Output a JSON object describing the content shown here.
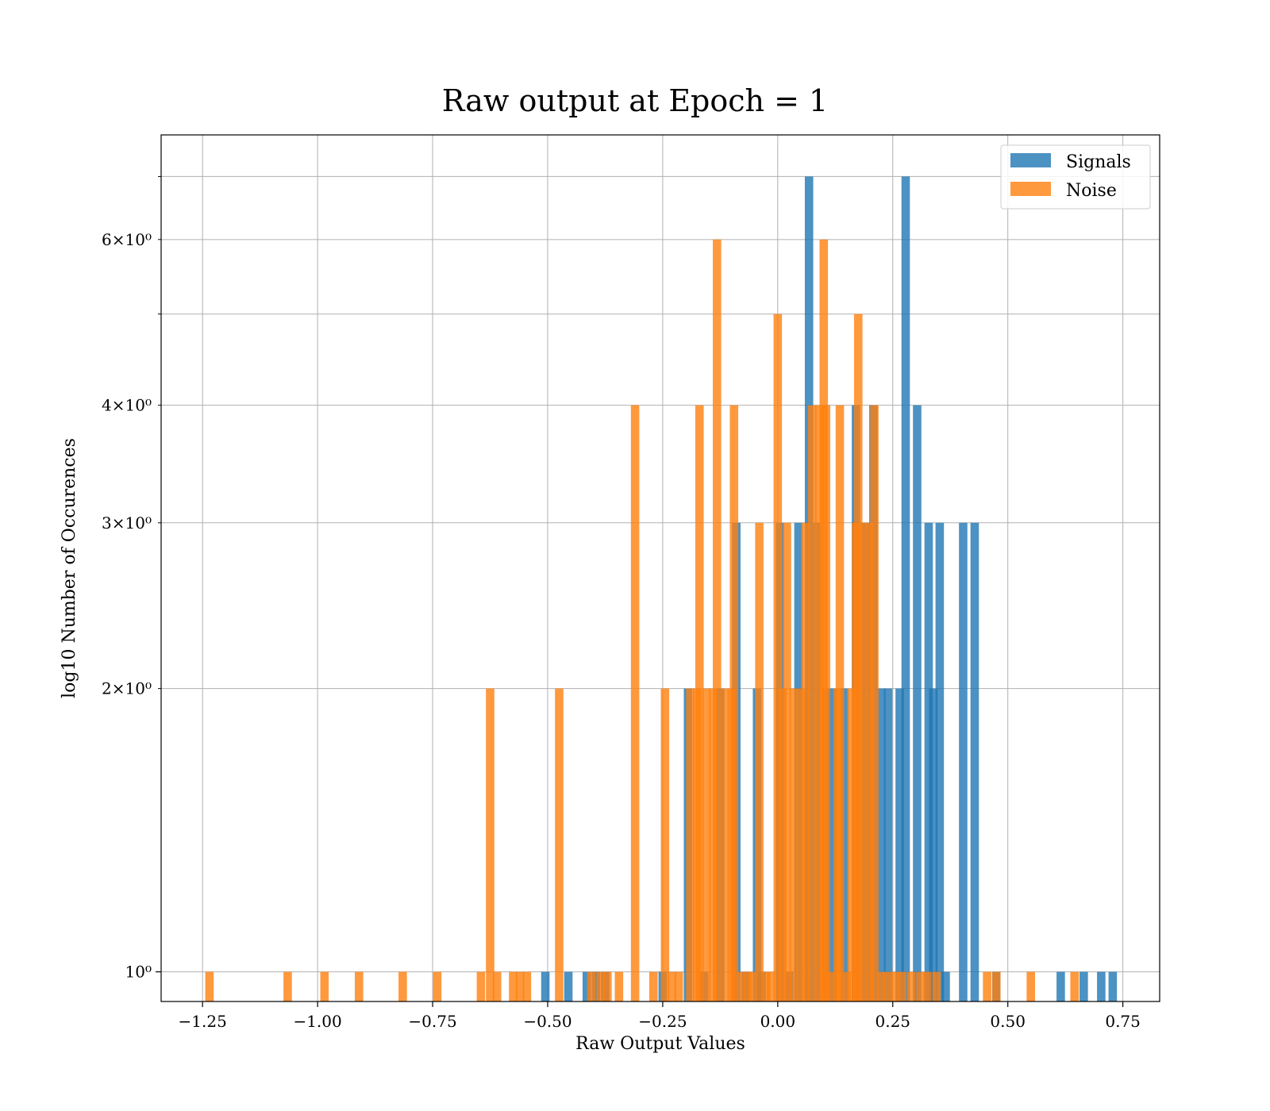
{
  "chart_data": {
    "type": "bar",
    "title": "Raw output at Epoch = 1",
    "xlabel": "Raw Output Values",
    "ylabel": "log10 Number of Occurences",
    "y_scale": "log",
    "xlim": [
      -1.34,
      0.83
    ],
    "ylim": [
      0.93,
      7.75
    ],
    "grid": true,
    "legend_position": "top-right",
    "bar_width": 0.0183,
    "x_ticks": [
      -1.25,
      -1.0,
      -0.75,
      -0.5,
      -0.25,
      0.0,
      0.25,
      0.5,
      0.75
    ],
    "x_tick_labels": [
      "−1.25",
      "−1.00",
      "−0.75",
      "−0.50",
      "−0.25",
      "0.00",
      "0.25",
      "0.50",
      "0.75"
    ],
    "y_major_ticks": [
      1
    ],
    "y_major_tick_labels": [
      "10⁰"
    ],
    "y_minor_ticks": [
      2,
      3,
      4,
      5,
      6,
      7
    ],
    "y_minor_tick_labels": {
      "2": "2×10⁰",
      "3": "3×10⁰",
      "4": "4×10⁰",
      "6": "6×10⁰"
    },
    "series": [
      {
        "name": "Signals",
        "color": "#1f77b4",
        "bars": [
          {
            "x": -0.505,
            "y": 1
          },
          {
            "x": -0.455,
            "y": 1
          },
          {
            "x": -0.415,
            "y": 1
          },
          {
            "x": -0.395,
            "y": 1
          },
          {
            "x": -0.375,
            "y": 1
          },
          {
            "x": -0.25,
            "y": 1
          },
          {
            "x": -0.195,
            "y": 2
          },
          {
            "x": -0.16,
            "y": 1
          },
          {
            "x": -0.125,
            "y": 2
          },
          {
            "x": -0.09,
            "y": 3
          },
          {
            "x": -0.07,
            "y": 1
          },
          {
            "x": -0.045,
            "y": 2
          },
          {
            "x": -0.035,
            "y": 1
          },
          {
            "x": 0.005,
            "y": 3
          },
          {
            "x": 0.025,
            "y": 1
          },
          {
            "x": 0.045,
            "y": 3
          },
          {
            "x": 0.068,
            "y": 7
          },
          {
            "x": 0.085,
            "y": 3
          },
          {
            "x": 0.105,
            "y": 2
          },
          {
            "x": 0.12,
            "y": 2
          },
          {
            "x": 0.145,
            "y": 2
          },
          {
            "x": 0.17,
            "y": 4
          },
          {
            "x": 0.19,
            "y": 3
          },
          {
            "x": 0.208,
            "y": 4
          },
          {
            "x": 0.225,
            "y": 2
          },
          {
            "x": 0.24,
            "y": 2
          },
          {
            "x": 0.265,
            "y": 2
          },
          {
            "x": 0.278,
            "y": 7
          },
          {
            "x": 0.303,
            "y": 4
          },
          {
            "x": 0.328,
            "y": 3
          },
          {
            "x": 0.338,
            "y": 2
          },
          {
            "x": 0.352,
            "y": 3
          },
          {
            "x": 0.365,
            "y": 1
          },
          {
            "x": 0.403,
            "y": 3
          },
          {
            "x": 0.428,
            "y": 3
          },
          {
            "x": 0.475,
            "y": 1
          },
          {
            "x": 0.615,
            "y": 1
          },
          {
            "x": 0.665,
            "y": 1
          },
          {
            "x": 0.703,
            "y": 1
          },
          {
            "x": 0.728,
            "y": 1
          }
        ]
      },
      {
        "name": "Noise",
        "color": "#ff7f0e",
        "bars": [
          {
            "x": -1.235,
            "y": 1
          },
          {
            "x": -1.065,
            "y": 1
          },
          {
            "x": -0.985,
            "y": 1
          },
          {
            "x": -0.91,
            "y": 1
          },
          {
            "x": -0.815,
            "y": 1
          },
          {
            "x": -0.74,
            "y": 1
          },
          {
            "x": -0.645,
            "y": 1
          },
          {
            "x": -0.625,
            "y": 2
          },
          {
            "x": -0.61,
            "y": 1
          },
          {
            "x": -0.575,
            "y": 1
          },
          {
            "x": -0.56,
            "y": 1
          },
          {
            "x": -0.545,
            "y": 1
          },
          {
            "x": -0.475,
            "y": 2
          },
          {
            "x": -0.405,
            "y": 1
          },
          {
            "x": -0.385,
            "y": 1
          },
          {
            "x": -0.37,
            "y": 1
          },
          {
            "x": -0.345,
            "y": 1
          },
          {
            "x": -0.31,
            "y": 4
          },
          {
            "x": -0.27,
            "y": 1
          },
          {
            "x": -0.245,
            "y": 2
          },
          {
            "x": -0.23,
            "y": 1
          },
          {
            "x": -0.215,
            "y": 1
          },
          {
            "x": -0.19,
            "y": 2
          },
          {
            "x": -0.175,
            "y": 2
          },
          {
            "x": -0.17,
            "y": 4
          },
          {
            "x": -0.155,
            "y": 2
          },
          {
            "x": -0.14,
            "y": 2
          },
          {
            "x": -0.132,
            "y": 6
          },
          {
            "x": -0.115,
            "y": 2
          },
          {
            "x": -0.1,
            "y": 2
          },
          {
            "x": -0.095,
            "y": 4
          },
          {
            "x": -0.08,
            "y": 1
          },
          {
            "x": -0.065,
            "y": 1
          },
          {
            "x": -0.055,
            "y": 1
          },
          {
            "x": -0.04,
            "y": 3
          },
          {
            "x": -0.025,
            "y": 1
          },
          {
            "x": -0.015,
            "y": 1
          },
          {
            "x": 0.0,
            "y": 5
          },
          {
            "x": 0.01,
            "y": 2
          },
          {
            "x": 0.02,
            "y": 3
          },
          {
            "x": 0.035,
            "y": 2
          },
          {
            "x": 0.05,
            "y": 2
          },
          {
            "x": 0.06,
            "y": 3
          },
          {
            "x": 0.075,
            "y": 4
          },
          {
            "x": 0.09,
            "y": 4
          },
          {
            "x": 0.1,
            "y": 6
          },
          {
            "x": 0.105,
            "y": 4
          },
          {
            "x": 0.115,
            "y": 1
          },
          {
            "x": 0.13,
            "y": 2
          },
          {
            "x": 0.135,
            "y": 4
          },
          {
            "x": 0.15,
            "y": 1
          },
          {
            "x": 0.16,
            "y": 2
          },
          {
            "x": 0.17,
            "y": 3
          },
          {
            "x": 0.175,
            "y": 5
          },
          {
            "x": 0.185,
            "y": 3
          },
          {
            "x": 0.2,
            "y": 3
          },
          {
            "x": 0.21,
            "y": 4
          },
          {
            "x": 0.225,
            "y": 1
          },
          {
            "x": 0.24,
            "y": 1
          },
          {
            "x": 0.255,
            "y": 1
          },
          {
            "x": 0.27,
            "y": 1
          },
          {
            "x": 0.29,
            "y": 1
          },
          {
            "x": 0.31,
            "y": 1
          },
          {
            "x": 0.325,
            "y": 1
          },
          {
            "x": 0.345,
            "y": 1
          },
          {
            "x": 0.455,
            "y": 1
          },
          {
            "x": 0.475,
            "y": 1
          },
          {
            "x": 0.55,
            "y": 1
          },
          {
            "x": 0.645,
            "y": 1
          }
        ]
      }
    ]
  }
}
